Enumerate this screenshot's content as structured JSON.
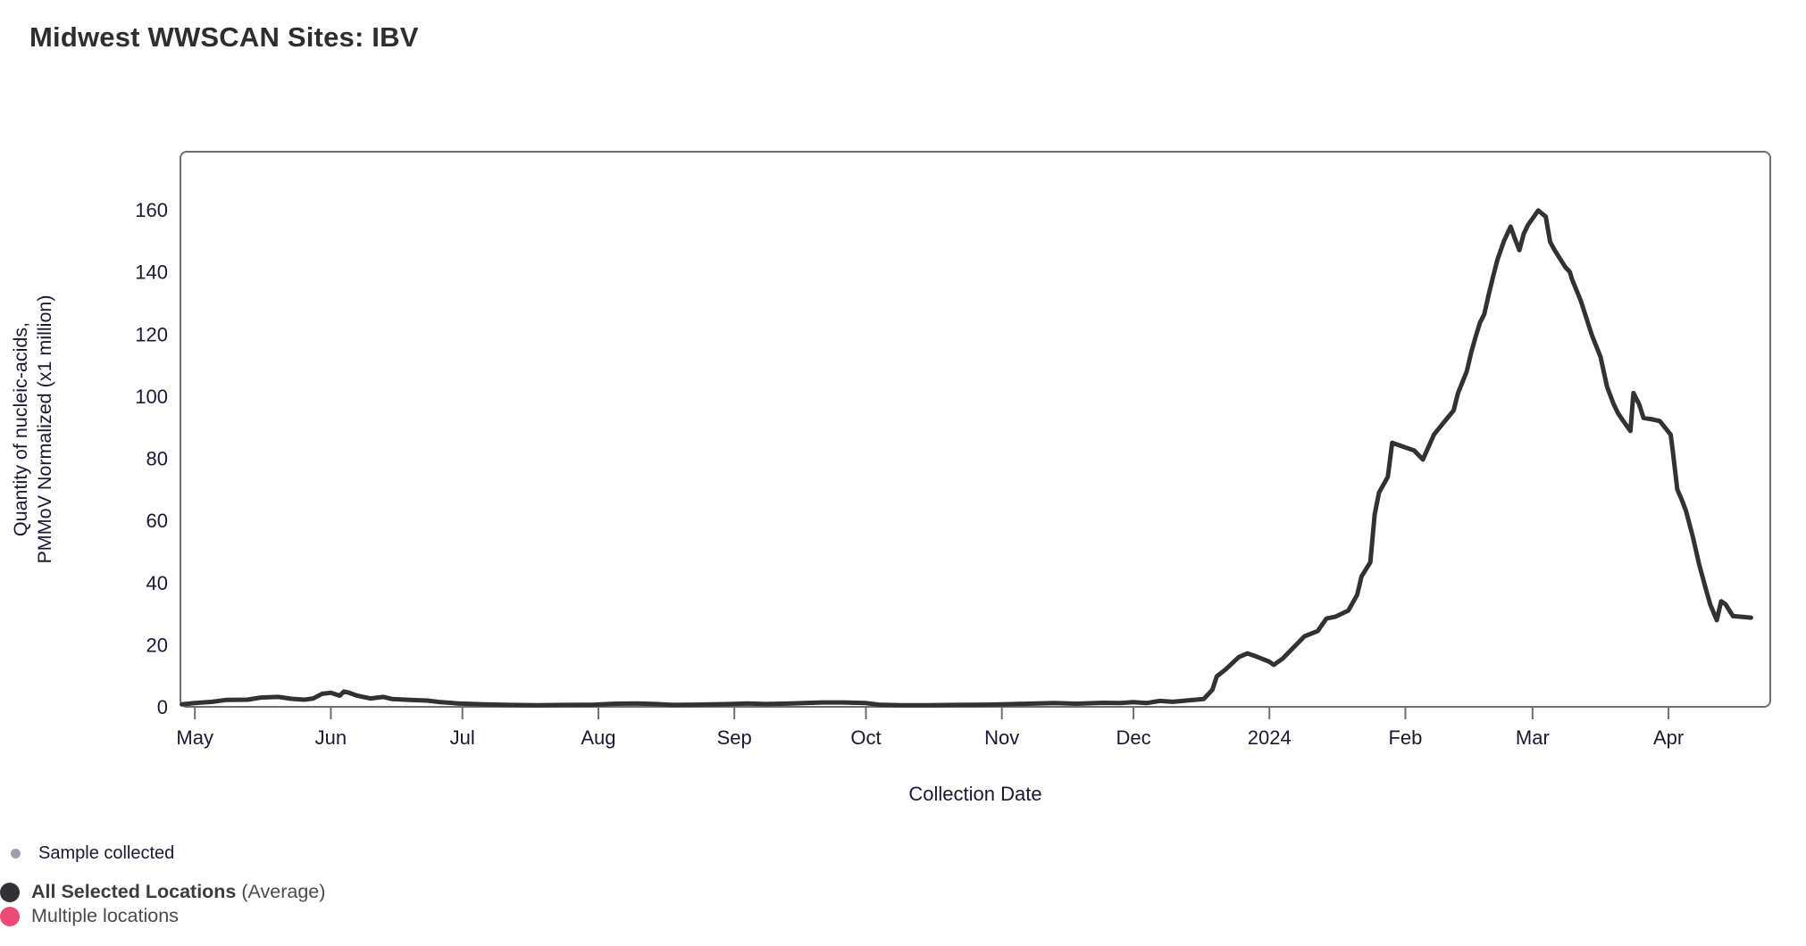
{
  "chart_data": {
    "type": "line",
    "title": "Midwest WWSCAN Sites: IBV",
    "xlabel": "Collection Date",
    "ylabel_lines": [
      "Quantity of nucleic-acids,",
      "PMMoV Normalized (x1 million)"
    ],
    "x_unit": "days since 2023-05-01",
    "xlim": [
      -3.3,
      359.2
    ],
    "ylim": [
      0,
      178.7
    ],
    "grid": false,
    "legend_position": "bottom-left",
    "frame_color": "#6f6f73",
    "text_color": "#191933",
    "yticks": [
      0,
      20,
      40,
      60,
      80,
      100,
      120,
      140,
      160
    ],
    "xticks": [
      {
        "label": "May",
        "day": 0
      },
      {
        "label": "Jun",
        "day": 31
      },
      {
        "label": "Jul",
        "day": 61
      },
      {
        "label": "Aug",
        "day": 92
      },
      {
        "label": "Sep",
        "day": 123
      },
      {
        "label": "Oct",
        "day": 153
      },
      {
        "label": "Nov",
        "day": 184
      },
      {
        "label": "Dec",
        "day": 214
      },
      {
        "label": "2024",
        "day": 245
      },
      {
        "label": "Feb",
        "day": 276
      },
      {
        "label": "Mar",
        "day": 305
      },
      {
        "label": "Apr",
        "day": 336
      }
    ],
    "series": [
      {
        "name": "All Selected Locations (Average)",
        "color": "#323232",
        "points": [
          [
            -3,
            0.8
          ],
          [
            0,
            1.2
          ],
          [
            4,
            1.6
          ],
          [
            7,
            2.2
          ],
          [
            12,
            2.3
          ],
          [
            15,
            3
          ],
          [
            19,
            3.2
          ],
          [
            22,
            2.6
          ],
          [
            25,
            2.3
          ],
          [
            27,
            2.7
          ],
          [
            29,
            4.2
          ],
          [
            31,
            4.5
          ],
          [
            33,
            3.6
          ],
          [
            34,
            4.9
          ],
          [
            35,
            4.6
          ],
          [
            37,
            3.6
          ],
          [
            40,
            2.7
          ],
          [
            43,
            3.2
          ],
          [
            45,
            2.5
          ],
          [
            49,
            2.2
          ],
          [
            53,
            2
          ],
          [
            56,
            1.5
          ],
          [
            60,
            1.1
          ],
          [
            66,
            0.8
          ],
          [
            72,
            0.6
          ],
          [
            78,
            0.5
          ],
          [
            84,
            0.6
          ],
          [
            91,
            0.7
          ],
          [
            96,
            1
          ],
          [
            101,
            1.1
          ],
          [
            105,
            0.9
          ],
          [
            109,
            0.6
          ],
          [
            114,
            0.7
          ],
          [
            122,
            0.9
          ],
          [
            126,
            1.1
          ],
          [
            130,
            0.9
          ],
          [
            134,
            1
          ],
          [
            139,
            1.2
          ],
          [
            143,
            1.4
          ],
          [
            148,
            1.4
          ],
          [
            153,
            1.2
          ],
          [
            156,
            0.7
          ],
          [
            161,
            0.5
          ],
          [
            167,
            0.5
          ],
          [
            173,
            0.6
          ],
          [
            180,
            0.7
          ],
          [
            184,
            0.8
          ],
          [
            190,
            1
          ],
          [
            196,
            1.2
          ],
          [
            201,
            1
          ],
          [
            207,
            1.3
          ],
          [
            211,
            1.2
          ],
          [
            214,
            1.5
          ],
          [
            217,
            1.2
          ],
          [
            220,
            1.9
          ],
          [
            223,
            1.6
          ],
          [
            226,
            2
          ],
          [
            230,
            2.5
          ],
          [
            232,
            5.5
          ],
          [
            233,
            9.8
          ],
          [
            235,
            12
          ],
          [
            238,
            16
          ],
          [
            240,
            17.2
          ],
          [
            242,
            16.2
          ],
          [
            245,
            14.5
          ],
          [
            246,
            13.5
          ],
          [
            248,
            15.5
          ],
          [
            250,
            18.4
          ],
          [
            253,
            22.7
          ],
          [
            256,
            24.4
          ],
          [
            258,
            28.4
          ],
          [
            260,
            29
          ],
          [
            263,
            31
          ],
          [
            265,
            36
          ],
          [
            266,
            42
          ],
          [
            268,
            46.5
          ],
          [
            269,
            62
          ],
          [
            270,
            69
          ],
          [
            272,
            74
          ],
          [
            273,
            85
          ],
          [
            276,
            83.5
          ],
          [
            278,
            82.5
          ],
          [
            280,
            79.6
          ],
          [
            282.5,
            87.6
          ],
          [
            285,
            92
          ],
          [
            287,
            95.4
          ],
          [
            288,
            101
          ],
          [
            290,
            108
          ],
          [
            291,
            114
          ],
          [
            292,
            119
          ],
          [
            293,
            123.6
          ],
          [
            294,
            126.4
          ],
          [
            295,
            132.8
          ],
          [
            296,
            138.5
          ],
          [
            297,
            144
          ],
          [
            298.5,
            150
          ],
          [
            300,
            154.6
          ],
          [
            301,
            150.6
          ],
          [
            302,
            147
          ],
          [
            303,
            152.3
          ],
          [
            304,
            155.2
          ],
          [
            305,
            157.2
          ],
          [
            306.3,
            159.8
          ],
          [
            307.3,
            158.6
          ],
          [
            308,
            157.8
          ],
          [
            309,
            149.7
          ],
          [
            310,
            147.1
          ],
          [
            311.5,
            143.7
          ],
          [
            312.5,
            141.5
          ],
          [
            313.5,
            140
          ],
          [
            314,
            137.6
          ],
          [
            316,
            130.7
          ],
          [
            318.5,
            119.8
          ],
          [
            320.5,
            112.6
          ],
          [
            322,
            103
          ],
          [
            323.5,
            97.4
          ],
          [
            324.5,
            94.5
          ],
          [
            325.7,
            92
          ],
          [
            327.3,
            88.8
          ],
          [
            328,
            101
          ],
          [
            329.3,
            97.4
          ],
          [
            330.3,
            93
          ],
          [
            332.4,
            92.5
          ],
          [
            334,
            92
          ],
          [
            336.5,
            87.6
          ],
          [
            337,
            82
          ],
          [
            338,
            70
          ],
          [
            339,
            66.7
          ],
          [
            340,
            63
          ],
          [
            341.5,
            55
          ],
          [
            343,
            45.7
          ],
          [
            344.5,
            38
          ],
          [
            345.5,
            33
          ],
          [
            347,
            27.9
          ],
          [
            348,
            34
          ],
          [
            349,
            33
          ],
          [
            350.7,
            29.2
          ],
          [
            352.7,
            29
          ],
          [
            354.8,
            28.7
          ]
        ]
      }
    ]
  },
  "legend": {
    "sample_collected": "Sample collected",
    "all_selected_bold": "All Selected Locations",
    "all_selected_suffix": " (Average)",
    "multiple_locations": "Multiple locations",
    "colors": {
      "sample": "#9aa1ac",
      "all": "#323136",
      "multiple": "#ed4a78"
    }
  }
}
